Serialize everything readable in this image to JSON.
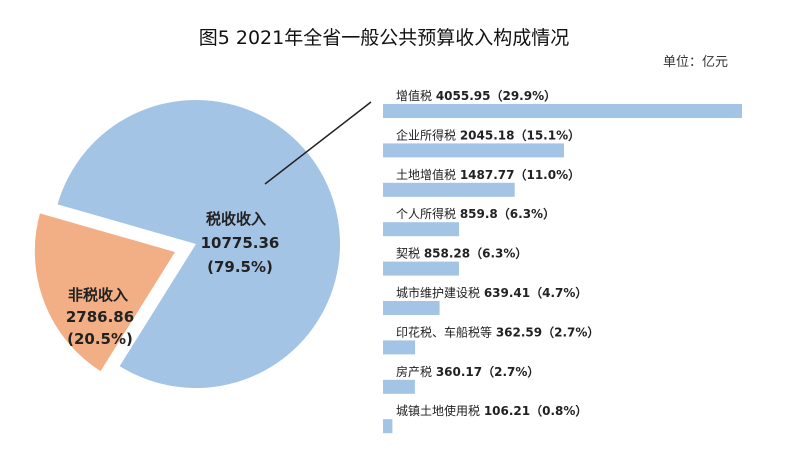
{
  "chart_data": {
    "type": "pie+bar",
    "title": "图5   2021年全省一般公共预算收入构成情况",
    "unit": "单位：亿元",
    "pie": [
      {
        "name": "税收收入",
        "value": "10775.36",
        "percent": "(79.5%)",
        "number": 10775.36,
        "color": "#a4c4e6"
      },
      {
        "name": "非税收入",
        "value": "2786.86",
        "percent": "(20.5%)",
        "number": 2786.86,
        "color": "#f2ae84"
      }
    ],
    "bars": [
      {
        "name": "增值税",
        "value": "4055.95",
        "percent": "（29.9%）",
        "number": 4055.95
      },
      {
        "name": "企业所得税",
        "value": "2045.18",
        "percent": "（15.1%）",
        "number": 2045.18
      },
      {
        "name": "土地增值税",
        "value": "1487.77",
        "percent": "（11.0%）",
        "number": 1487.77
      },
      {
        "name": "个人所得税",
        "value": "859.8",
        "percent": "（6.3%）",
        "number": 859.8
      },
      {
        "name": "契税",
        "value": "858.28",
        "percent": "（6.3%）",
        "number": 858.28
      },
      {
        "name": "城市维护建设税",
        "value": "639.41",
        "percent": "（4.7%）",
        "number": 639.41
      },
      {
        "name": "印花税、车船税等",
        "value": "362.59",
        "percent": "（2.7%）",
        "number": 362.59
      },
      {
        "name": "房产税",
        "value": "360.17",
        "percent": "（2.7%）",
        "number": 360.17
      },
      {
        "name": "城镇土地使用税",
        "value": "106.21",
        "percent": "（0.8%）",
        "number": 106.21
      }
    ],
    "bar_color": "#a4c4e6"
  }
}
